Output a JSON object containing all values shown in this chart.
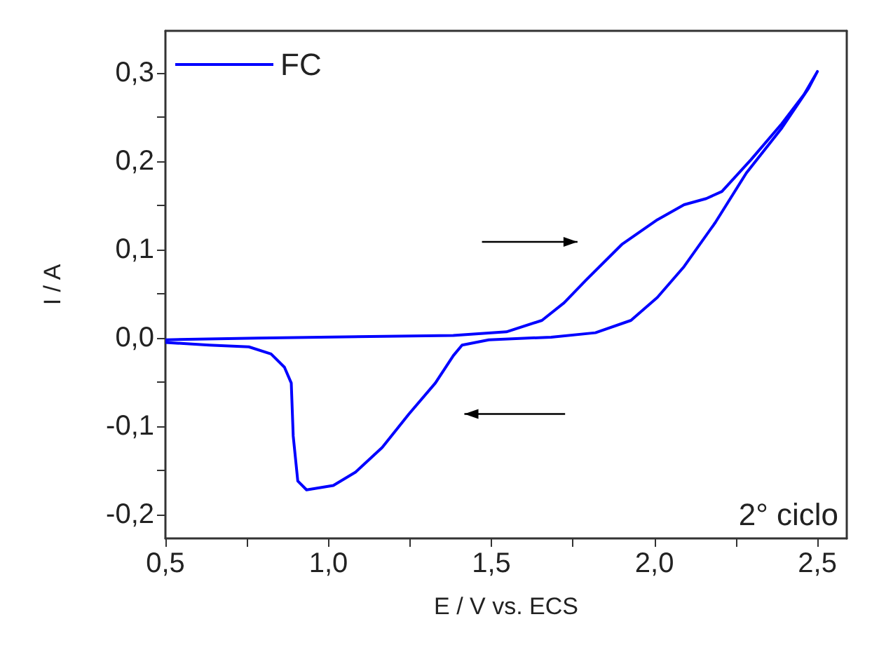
{
  "chart_data": {
    "type": "line",
    "xlabel": "E / V vs. ECS",
    "ylabel": "I / A",
    "xlim": [
      0.5,
      2.59
    ],
    "ylim": [
      -0.227,
      0.348
    ],
    "xticks": [
      {
        "value": 0.5,
        "label": "0,5"
      },
      {
        "value": 0.75,
        "label": null
      },
      {
        "value": 1.0,
        "label": "1,0"
      },
      {
        "value": 1.25,
        "label": null
      },
      {
        "value": 1.5,
        "label": "1,5"
      },
      {
        "value": 1.75,
        "label": null
      },
      {
        "value": 2.0,
        "label": "2,0"
      },
      {
        "value": 2.25,
        "label": null
      },
      {
        "value": 2.5,
        "label": "2,5"
      }
    ],
    "yticks": [
      {
        "value": -0.2,
        "label": "-0,2"
      },
      {
        "value": -0.15,
        "label": null
      },
      {
        "value": -0.1,
        "label": "-0,1"
      },
      {
        "value": -0.05,
        "label": null
      },
      {
        "value": 0,
        "label": "0,0"
      },
      {
        "value": 0.05,
        "label": null
      },
      {
        "value": 0.1,
        "label": "0,1"
      },
      {
        "value": 0.15,
        "label": null
      },
      {
        "value": 0.2,
        "label": "0,2"
      },
      {
        "value": 0.25,
        "label": null
      },
      {
        "value": 0.3,
        "label": "0,3"
      }
    ],
    "series": [
      {
        "name": "FC",
        "color": "#0000ff",
        "x": [
          0.5,
          0.783,
          1.383,
          1.546,
          1.655,
          1.723,
          1.791,
          1.9,
          2.009,
          2.091,
          2.159,
          2.207,
          2.296,
          2.391,
          2.459,
          2.5,
          2.473,
          2.391,
          2.282,
          2.187,
          2.091,
          2.009,
          1.928,
          1.819,
          1.683,
          1.492,
          1.41,
          1.383,
          1.328,
          1.247,
          1.165,
          1.083,
          1.015,
          0.933,
          0.906,
          0.892,
          0.886,
          0.865,
          0.824,
          0.756,
          0.634,
          0.5
        ],
        "values": [
          -0.002,
          0,
          0.003,
          0.007,
          0.02,
          0.04,
          0.066,
          0.106,
          0.134,
          0.151,
          0.158,
          0.166,
          0.202,
          0.243,
          0.276,
          0.302,
          0.283,
          0.238,
          0.187,
          0.131,
          0.081,
          0.046,
          0.02,
          0.006,
          0.001,
          -0.002,
          -0.008,
          -0.02,
          -0.051,
          -0.086,
          -0.124,
          -0.152,
          -0.167,
          -0.172,
          -0.162,
          -0.111,
          -0.051,
          -0.033,
          -0.018,
          -0.01,
          -0.008,
          -0.005
        ]
      }
    ],
    "annotations": [
      "2° ciclo"
    ],
    "legend": "top left",
    "grid": false,
    "marker": "none",
    "line_style": "solid"
  }
}
